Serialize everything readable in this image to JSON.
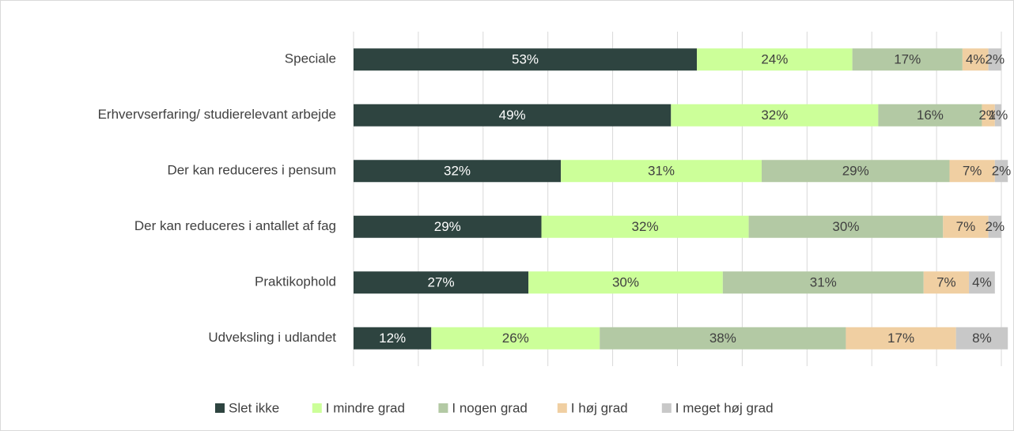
{
  "chart_data": {
    "type": "stacked-bar-horizontal",
    "categories": [
      "Speciale",
      "Erhvervserfaring/ studierelevant arbejde",
      "Der kan reduceres i pensum",
      "Der kan reduceres i antallet af fag",
      "Praktikophold",
      "Udveksling i udlandet"
    ],
    "series": [
      {
        "name": "Slet ikke",
        "color": "#2e4440",
        "values": [
          53,
          49,
          32,
          29,
          27,
          12
        ],
        "value_labels": [
          "53%",
          "49%",
          "32%",
          "29%",
          "27%",
          "12%"
        ]
      },
      {
        "name": "I mindre grad",
        "color": "#ccff99",
        "values": [
          24,
          32,
          31,
          32,
          30,
          26
        ],
        "value_labels": [
          "24%",
          "32%",
          "31%",
          "32%",
          "30%",
          "26%"
        ]
      },
      {
        "name": "I nogen grad",
        "color": "#b3c9a4",
        "values": [
          17,
          16,
          29,
          30,
          31,
          38
        ],
        "value_labels": [
          "17%",
          "16%",
          "29%",
          "30%",
          "31%",
          "38%"
        ]
      },
      {
        "name": "I høj grad",
        "color": "#f0cfa2",
        "values": [
          4,
          2,
          7,
          7,
          7,
          17
        ],
        "value_labels": [
          "4%",
          "2%",
          "7%",
          "7%",
          "7%",
          "17%"
        ]
      },
      {
        "name": "I meget høj grad",
        "color": "#c8c8c8",
        "values": [
          2,
          1,
          2,
          2,
          4,
          8
        ],
        "value_labels": [
          "2%",
          "1%",
          "2%",
          "2%",
          "4%",
          "8%"
        ]
      }
    ],
    "xlim": [
      0,
      100
    ],
    "xticks": [
      0,
      10,
      20,
      30,
      40,
      50,
      60,
      70,
      80,
      90,
      100
    ],
    "grid": true,
    "legend": "bottom"
  }
}
